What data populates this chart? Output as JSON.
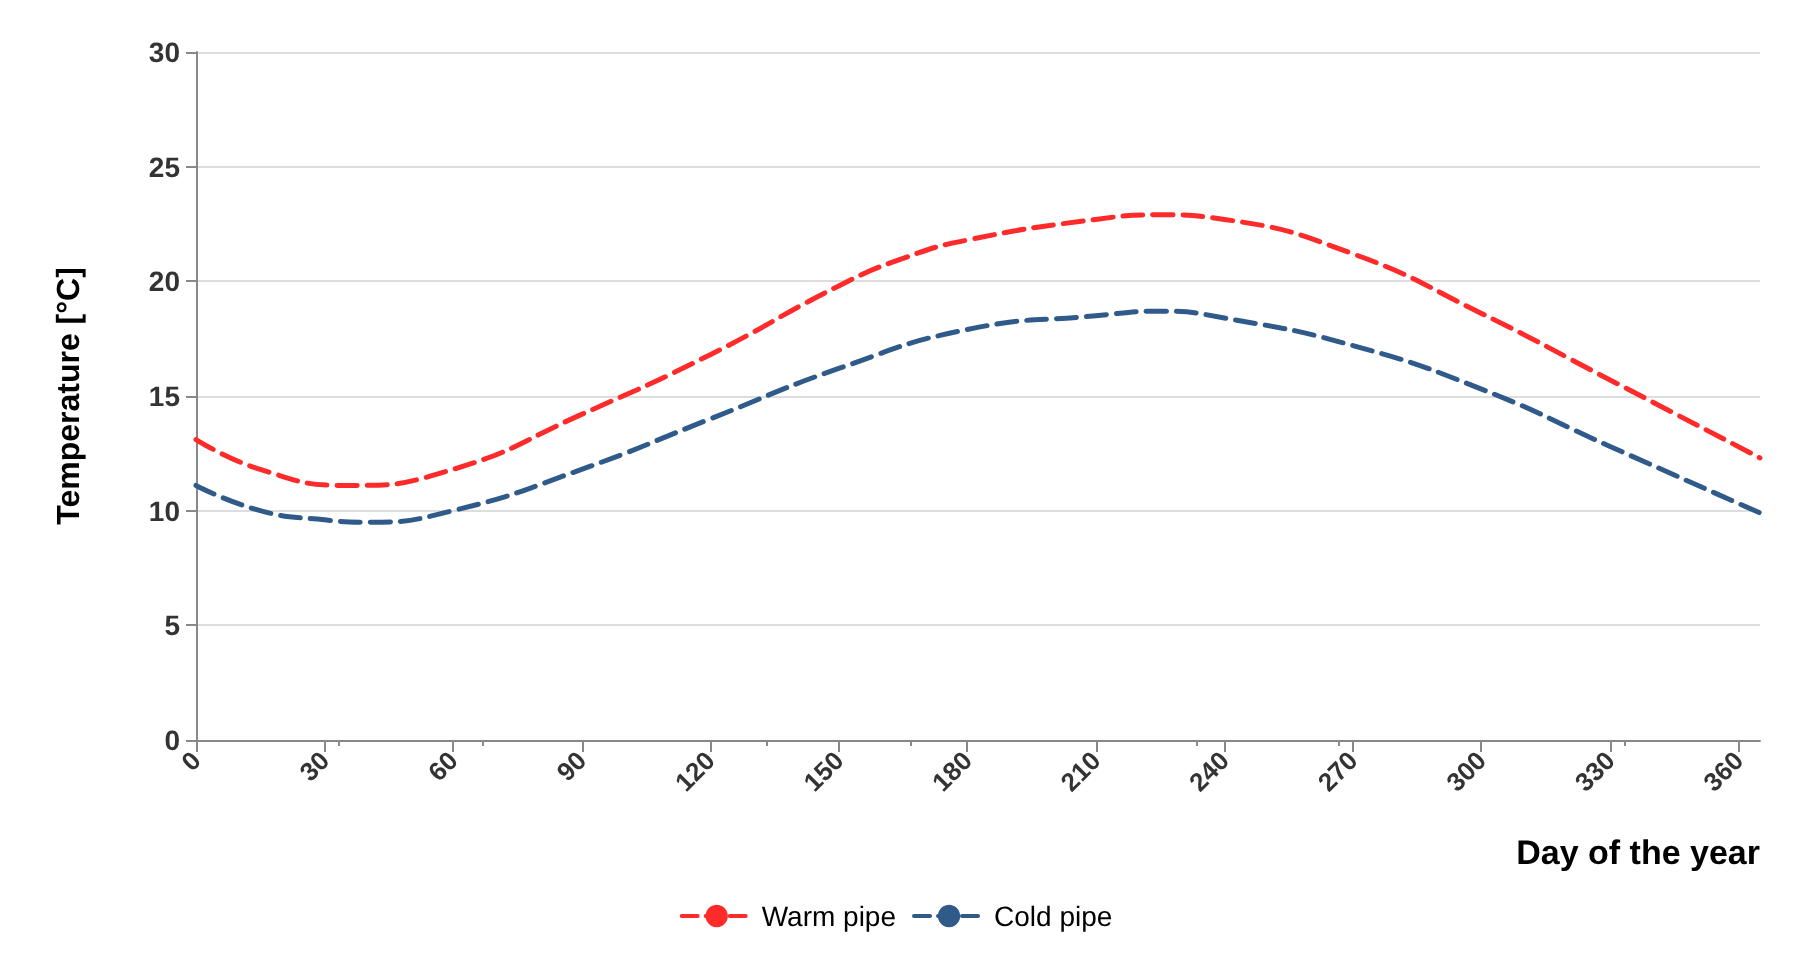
{
  "chart_data": {
    "type": "line",
    "xlabel": "Day of the year",
    "ylabel": "Temperature [°C]",
    "xlim": [
      0,
      365
    ],
    "xticks": [
      0,
      30,
      60,
      90,
      120,
      150,
      180,
      210,
      240,
      270,
      300,
      330,
      360
    ],
    "ylim": [
      0,
      30
    ],
    "yticks": [
      0,
      5,
      10,
      15,
      20,
      25,
      30
    ],
    "grid": "y",
    "legend": "bottom",
    "marker": "none",
    "line_style": "dashed",
    "series": [
      {
        "name": "Warm pipe",
        "color": "#ff2a2a",
        "x": [
          0,
          15,
          35,
          60,
          90,
          120,
          150,
          165,
          180,
          210,
          225,
          240,
          270,
          300,
          330,
          365
        ],
        "values": [
          13.1,
          11.8,
          11.1,
          11.8,
          14.2,
          16.8,
          19.8,
          21.0,
          21.8,
          22.7,
          22.9,
          22.7,
          21.2,
          18.6,
          15.7,
          12.3
        ]
      },
      {
        "name": "Cold pipe",
        "color": "#2f5a8a",
        "x": [
          0,
          15,
          30,
          40,
          60,
          90,
          120,
          150,
          180,
          210,
          225,
          240,
          270,
          300,
          330,
          365
        ],
        "values": [
          11.1,
          10.0,
          9.6,
          9.5,
          10.0,
          11.8,
          14.0,
          16.2,
          17.9,
          18.5,
          18.7,
          18.4,
          17.2,
          15.3,
          12.8,
          9.9
        ]
      }
    ]
  }
}
